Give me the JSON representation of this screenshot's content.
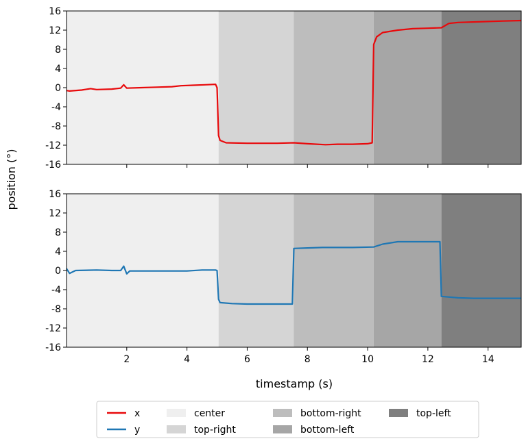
{
  "chart_data": {
    "type": "line",
    "xlabel": "timestamp (s)",
    "ylabel": "position (°)",
    "xlim": [
      0,
      15.1
    ],
    "x_ticks": [
      2,
      4,
      6,
      8,
      10,
      12,
      14
    ],
    "ylim": [
      -16,
      16
    ],
    "y_ticks": [
      -16,
      -12,
      -8,
      -4,
      0,
      4,
      8,
      12,
      16
    ],
    "grid": false,
    "legend_position": "bottom",
    "regions": [
      {
        "name": "center",
        "start": 0,
        "end": 5.05,
        "color": "#efefef"
      },
      {
        "name": "top-right",
        "start": 5.05,
        "end": 7.55,
        "color": "#d5d5d5"
      },
      {
        "name": "bottom-right",
        "start": 7.55,
        "end": 10.2,
        "color": "#bdbdbd"
      },
      {
        "name": "bottom-left",
        "start": 10.2,
        "end": 12.45,
        "color": "#a6a6a6"
      },
      {
        "name": "top-left",
        "start": 12.45,
        "end": 15.1,
        "color": "#7f7f7f"
      }
    ],
    "panels": [
      {
        "series": [
          {
            "name": "x",
            "color": "#e8090b",
            "points": [
              [
                0,
                -0.6
              ],
              [
                0.1,
                -0.7
              ],
              [
                0.5,
                -0.5
              ],
              [
                0.8,
                -0.2
              ],
              [
                1.0,
                -0.4
              ],
              [
                1.5,
                -0.3
              ],
              [
                1.8,
                -0.1
              ],
              [
                1.9,
                0.6
              ],
              [
                2.0,
                -0.1
              ],
              [
                2.5,
                0
              ],
              [
                3.0,
                0.1
              ],
              [
                3.5,
                0.2
              ],
              [
                3.8,
                0.4
              ],
              [
                4.2,
                0.5
              ],
              [
                4.6,
                0.6
              ],
              [
                4.95,
                0.7
              ],
              [
                5.0,
                0
              ],
              [
                5.05,
                -10
              ],
              [
                5.1,
                -11
              ],
              [
                5.3,
                -11.5
              ],
              [
                6.0,
                -11.6
              ],
              [
                6.5,
                -11.6
              ],
              [
                7.0,
                -11.6
              ],
              [
                7.55,
                -11.5
              ],
              [
                8.0,
                -11.7
              ],
              [
                8.6,
                -11.9
              ],
              [
                9.0,
                -11.8
              ],
              [
                9.5,
                -11.8
              ],
              [
                10.0,
                -11.7
              ],
              [
                10.15,
                -11.5
              ],
              [
                10.2,
                9
              ],
              [
                10.3,
                10.6
              ],
              [
                10.5,
                11.5
              ],
              [
                11.0,
                12
              ],
              [
                11.5,
                12.3
              ],
              [
                12.0,
                12.4
              ],
              [
                12.45,
                12.5
              ],
              [
                12.7,
                13.4
              ],
              [
                13.0,
                13.6
              ],
              [
                13.5,
                13.7
              ],
              [
                14.0,
                13.8
              ],
              [
                14.5,
                13.9
              ],
              [
                15.1,
                14
              ]
            ]
          }
        ]
      },
      {
        "series": [
          {
            "name": "y",
            "color": "#1f77b4",
            "points": [
              [
                0,
                0.4
              ],
              [
                0.1,
                -0.6
              ],
              [
                0.3,
                0
              ],
              [
                1.0,
                0.1
              ],
              [
                1.5,
                0
              ],
              [
                1.8,
                0
              ],
              [
                1.9,
                0.9
              ],
              [
                2.0,
                -0.7
              ],
              [
                2.1,
                -0.1
              ],
              [
                3.0,
                -0.1
              ],
              [
                4.0,
                -0.1
              ],
              [
                4.5,
                0.1
              ],
              [
                4.95,
                0.1
              ],
              [
                5.0,
                0
              ],
              [
                5.05,
                -6
              ],
              [
                5.1,
                -6.7
              ],
              [
                5.5,
                -6.9
              ],
              [
                6.0,
                -7.0
              ],
              [
                6.5,
                -7.0
              ],
              [
                7.0,
                -7.0
              ],
              [
                7.5,
                -7.0
              ],
              [
                7.55,
                4.6
              ],
              [
                8.0,
                4.7
              ],
              [
                8.5,
                4.8
              ],
              [
                9.0,
                4.8
              ],
              [
                9.5,
                4.8
              ],
              [
                10.2,
                4.9
              ],
              [
                10.5,
                5.5
              ],
              [
                11.0,
                6.0
              ],
              [
                11.5,
                6.0
              ],
              [
                12.0,
                6.0
              ],
              [
                12.4,
                6.0
              ],
              [
                12.45,
                -5.4
              ],
              [
                13.0,
                -5.7
              ],
              [
                13.5,
                -5.8
              ],
              [
                14.0,
                -5.8
              ],
              [
                15.1,
                -5.8
              ]
            ]
          }
        ]
      }
    ]
  }
}
